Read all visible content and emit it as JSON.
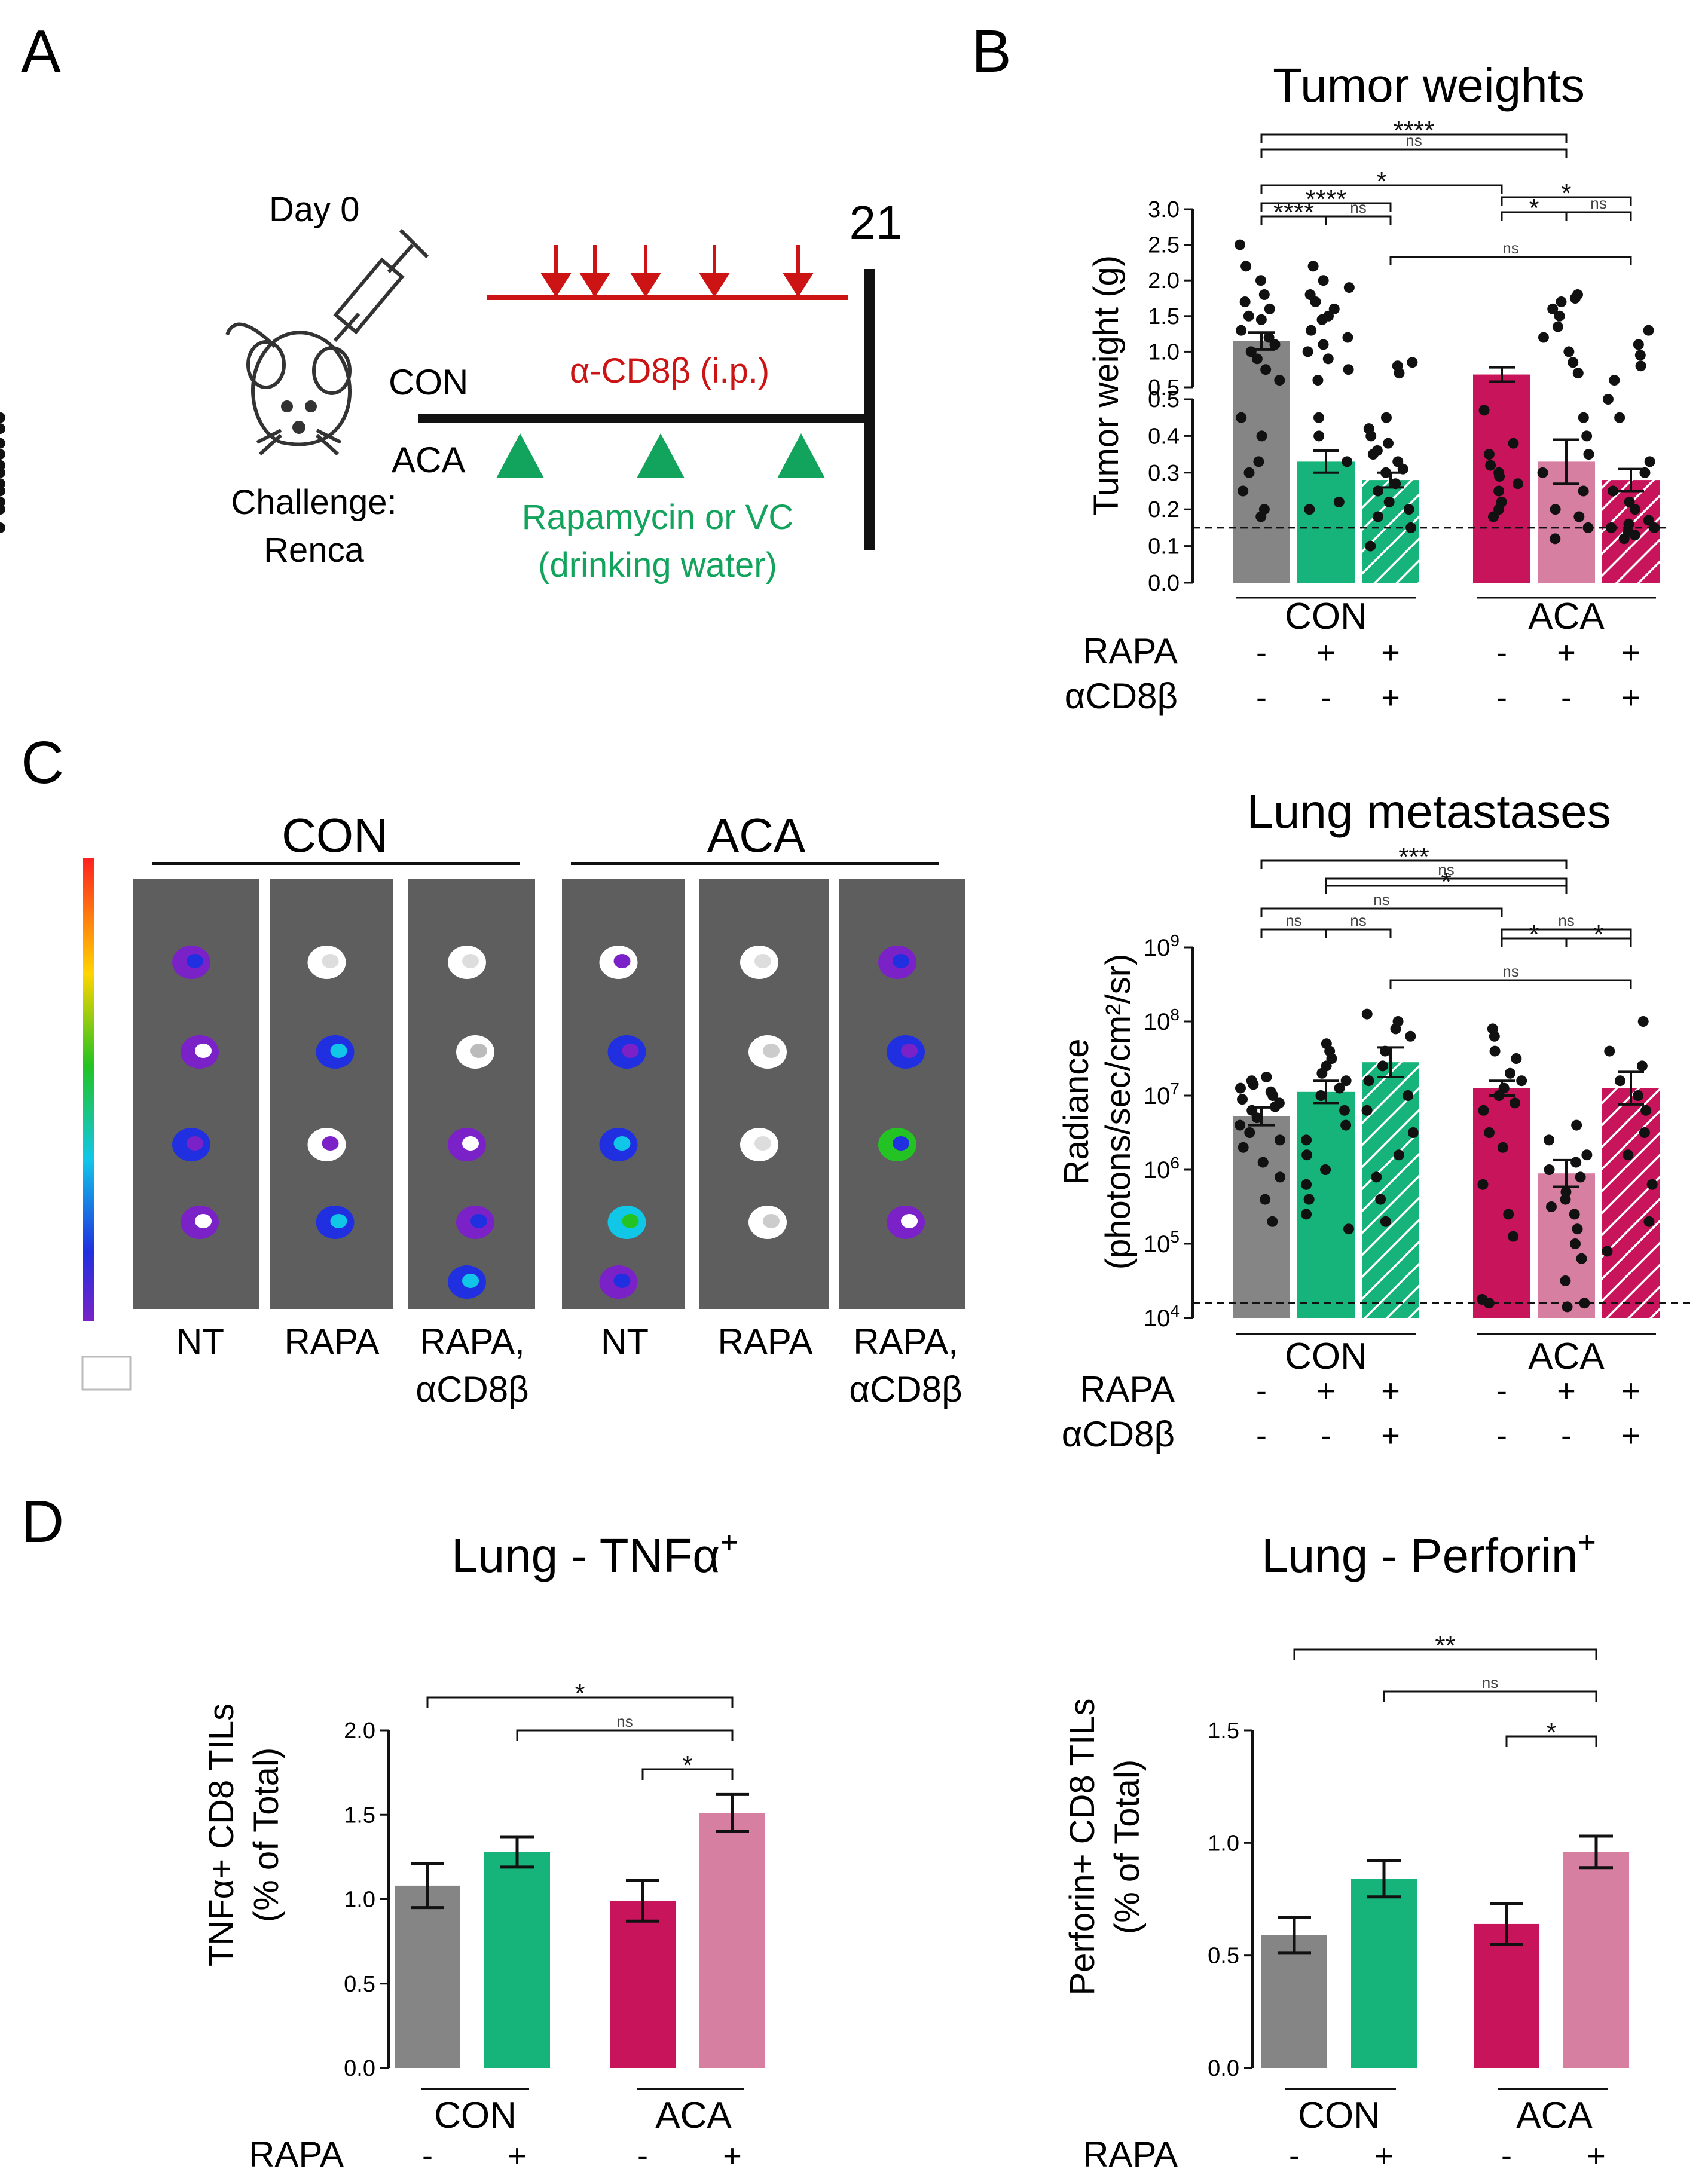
{
  "panels": {
    "a": "A",
    "b": "B",
    "c": "C",
    "d": "D"
  },
  "panel_a": {
    "day0": "Day 0",
    "day21": "21",
    "con": "CON",
    "aca": "ACA",
    "cd8_label": "α-CD8β (i.p.)",
    "rapa_label_1": "Rapamycin or VC",
    "rapa_label_2": "(drinking water)",
    "challenge_1": "Challenge:",
    "challenge_2": "Renca",
    "colors": {
      "red": "#cc1414",
      "green": "#12a35c",
      "black": "#111111"
    }
  },
  "panel_c": {
    "group_con": "CON",
    "group_aca": "ACA",
    "labels": [
      "NT",
      "RAPA",
      "RAPA,",
      "αCD8β",
      "NT",
      "RAPA",
      "RAPA,",
      "αCD8β"
    ]
  },
  "colors": {
    "gray": "#858585",
    "green": "#16b37a",
    "crimson": "#c8145a",
    "pink": "#d67fa0"
  },
  "chart_data": [
    {
      "id": "tumor_weights",
      "type": "bar",
      "title": "Tumor weights",
      "ylabel": "Tumor weight (g)",
      "ylim_lower": [
        0.0,
        0.5
      ],
      "ylim_upper": [
        0.5,
        3.0
      ],
      "yticks_lower": [
        "0.0",
        "0.1",
        "0.2",
        "0.3",
        "0.4",
        "0.5"
      ],
      "yticks_upper": [
        "0.5",
        "1.0",
        "1.5",
        "2.0",
        "2.5",
        "3.0"
      ],
      "groups": [
        "CON",
        "ACA"
      ],
      "row_labels": [
        "RAPA",
        "αCD8β"
      ],
      "conditions": [
        {
          "rapa": "-",
          "cd8": "-"
        },
        {
          "rapa": "+",
          "cd8": "-"
        },
        {
          "rapa": "+",
          "cd8": "+"
        },
        {
          "rapa": "-",
          "cd8": "-"
        },
        {
          "rapa": "+",
          "cd8": "-"
        },
        {
          "rapa": "+",
          "cd8": "+"
        }
      ],
      "values": [
        1.15,
        0.33,
        0.28,
        0.68,
        0.33,
        0.28
      ],
      "errors": [
        0.12,
        0.03,
        0.02,
        0.1,
        0.06,
        0.03
      ],
      "threshold": 0.15,
      "significance": [
        "****",
        "ns",
        "*",
        "****",
        "****",
        "ns",
        "*",
        "*",
        "ns",
        "ns"
      ]
    },
    {
      "id": "lung_metastases",
      "type": "bar",
      "title": "Lung metastases",
      "ylabel_1": "Radiance",
      "ylabel_2": "(photons/sec/cm²/sr)",
      "yscale": "log",
      "ylim_exp": [
        4,
        9
      ],
      "yticks_base": "10",
      "yticks_exp": [
        "4",
        "5",
        "6",
        "7",
        "8",
        "9"
      ],
      "groups": [
        "CON",
        "ACA"
      ],
      "row_labels": [
        "RAPA",
        "αCD8β"
      ],
      "conditions": [
        {
          "rapa": "-",
          "cd8": "-"
        },
        {
          "rapa": "+",
          "cd8": "-"
        },
        {
          "rapa": "+",
          "cd8": "+"
        },
        {
          "rapa": "-",
          "cd8": "-"
        },
        {
          "rapa": "+",
          "cd8": "-"
        },
        {
          "rapa": "+",
          "cd8": "+"
        }
      ],
      "values_log10": [
        6.72,
        7.05,
        7.45,
        7.1,
        5.95,
        7.1
      ],
      "errors_log10": [
        0.12,
        0.15,
        0.2,
        0.1,
        0.18,
        0.22
      ],
      "threshold_log10": 4.2,
      "significance": [
        "***",
        "ns",
        "*",
        "ns",
        "ns",
        "ns",
        "ns",
        "*",
        "*",
        "ns"
      ]
    },
    {
      "id": "tnfa",
      "type": "bar",
      "title": "Lung - TNFα",
      "title_sup": "+",
      "ylabel_1": "TNFα+ CD8 TILs",
      "ylabel_2": "(% of Total)",
      "ylim": [
        0.0,
        2.0
      ],
      "yticks": [
        "0.0",
        "0.5",
        "1.0",
        "1.5",
        "2.0"
      ],
      "groups": [
        "CON",
        "ACA"
      ],
      "row_label": "RAPA",
      "rapa": [
        "-",
        "+",
        "-",
        "+"
      ],
      "values": [
        1.08,
        1.28,
        0.99,
        1.51
      ],
      "errors": [
        0.13,
        0.09,
        0.12,
        0.11
      ],
      "significance": [
        "*",
        "ns",
        "*"
      ]
    },
    {
      "id": "perforin",
      "type": "bar",
      "title": "Lung - Perforin",
      "title_sup": "+",
      "ylabel_1": "Perforin+ CD8 TILs",
      "ylabel_2": "(% of Total)",
      "ylim": [
        0.0,
        1.5
      ],
      "yticks": [
        "0.0",
        "0.5",
        "1.0",
        "1.5"
      ],
      "groups": [
        "CON",
        "ACA"
      ],
      "row_label": "RAPA",
      "rapa": [
        "-",
        "+",
        "-",
        "+"
      ],
      "values": [
        0.59,
        0.84,
        0.64,
        0.96
      ],
      "errors": [
        0.08,
        0.08,
        0.09,
        0.07
      ],
      "significance": [
        "**",
        "ns",
        "*"
      ]
    }
  ]
}
